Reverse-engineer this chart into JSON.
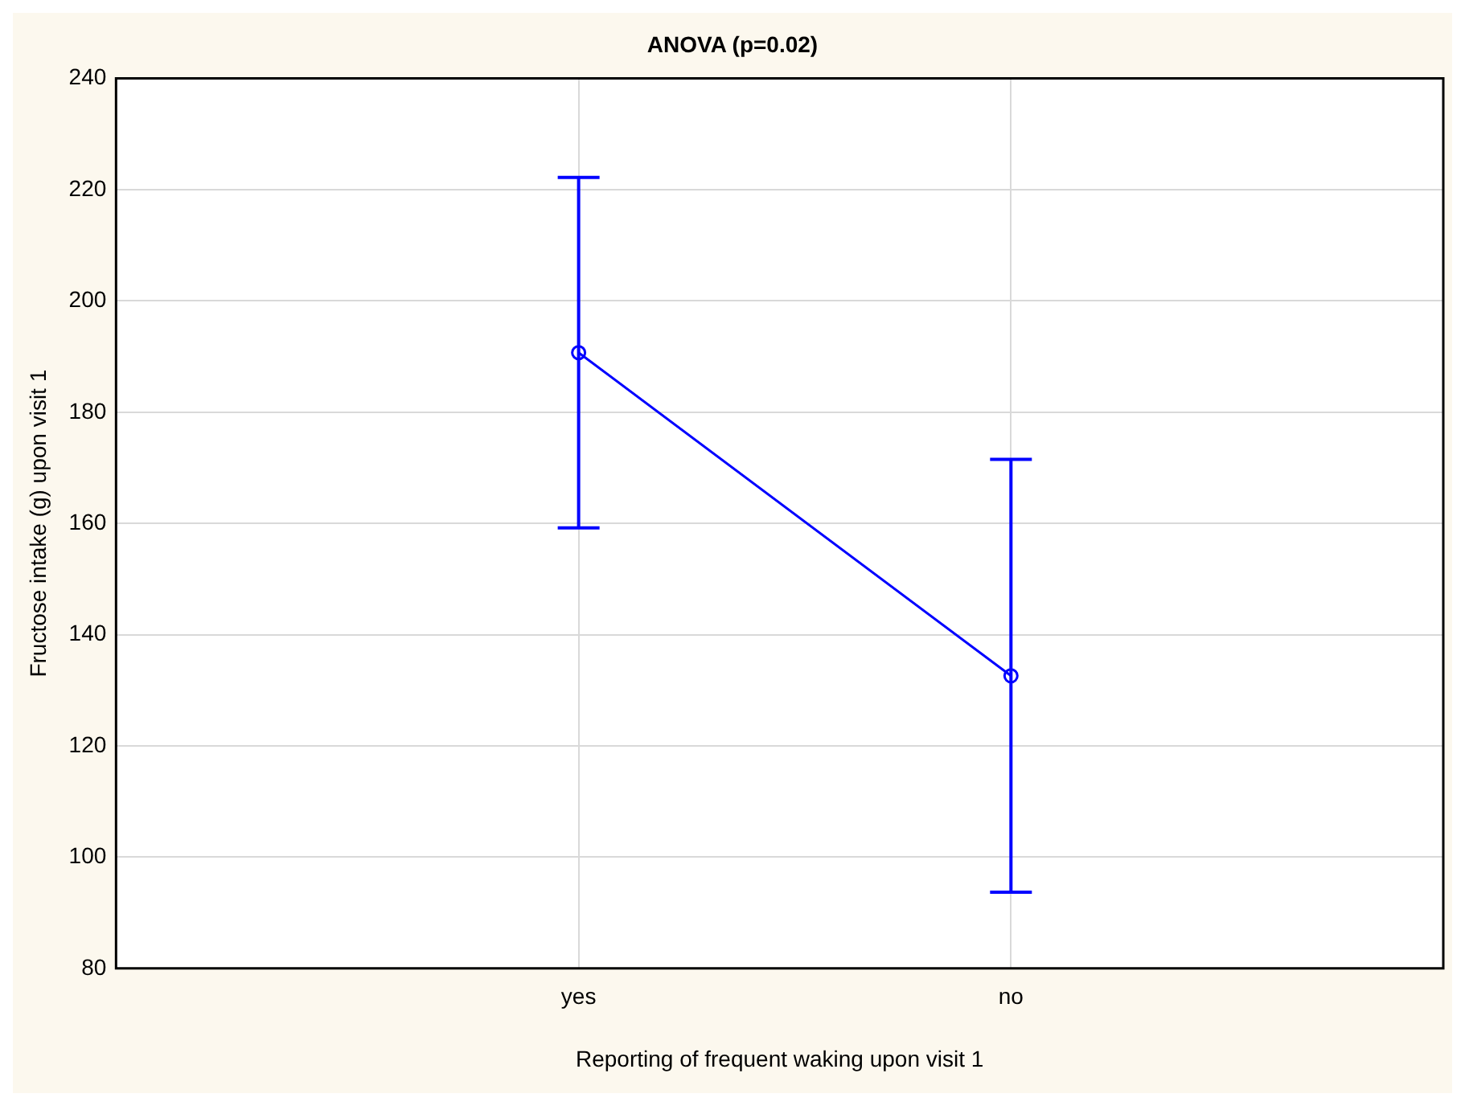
{
  "chart_data": {
    "type": "line",
    "title": "ANOVA (p=0.02)",
    "xlabel": "Reporting of frequent waking upon visit 1",
    "ylabel": "Fructose intake (g) upon visit 1",
    "categories": [
      "yes",
      "no"
    ],
    "series": [
      {
        "color": "#0000ff",
        "values": [
          190.7,
          132.6
        ],
        "errors": [
          31.5,
          38.9
        ]
      }
    ],
    "ylim": [
      80,
      240
    ],
    "yticks": [
      80,
      100,
      120,
      140,
      160,
      180,
      200,
      220,
      240
    ],
    "grid": true,
    "legend": false,
    "marker": "circle",
    "line_style": "solid"
  }
}
